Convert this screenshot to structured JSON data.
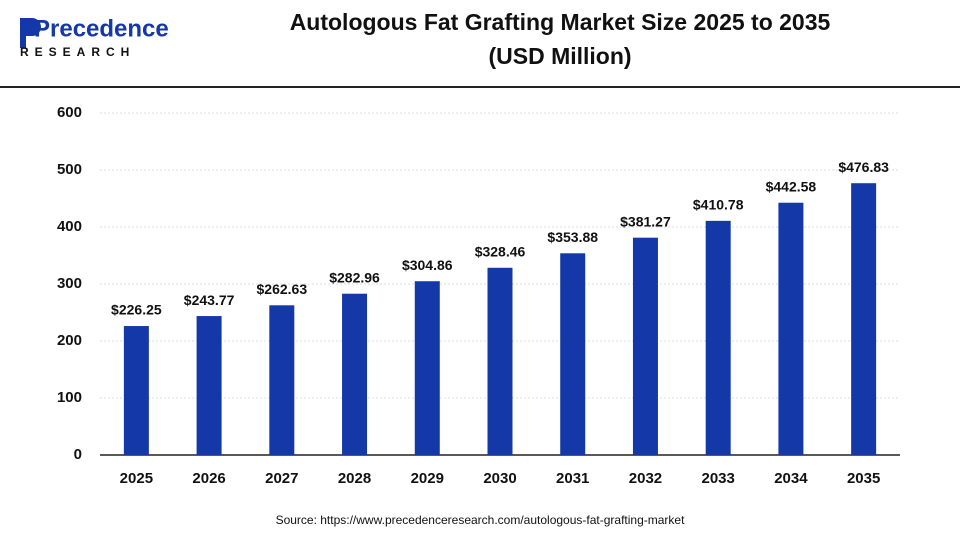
{
  "header": {
    "logo": "Precedence",
    "logo_sub": "RESEARCH"
  },
  "chart_data": {
    "type": "bar",
    "title": "Autologous Fat Grafting Market Size 2025 to 2035",
    "subtitle": "(USD Million)",
    "categories": [
      "2025",
      "2026",
      "2027",
      "2028",
      "2029",
      "2030",
      "2031",
      "2032",
      "2033",
      "2034",
      "2035"
    ],
    "values": [
      226.25,
      243.77,
      262.63,
      282.96,
      304.86,
      328.46,
      353.88,
      381.27,
      410.78,
      442.58,
      476.83
    ],
    "value_labels": [
      "$226.25",
      "$243.77",
      "$262.63",
      "$282.96",
      "$304.86",
      "$328.46",
      "$353.88",
      "$381.27",
      "$410.78",
      "$442.58",
      "$476.83"
    ],
    "color": "#1438a8",
    "ylim": [
      0,
      600
    ],
    "yticks": [
      0,
      100,
      200,
      300,
      400,
      500,
      600
    ],
    "grid": true,
    "source": "Source: https://www.precedenceresearch.com/autologous-fat-grafting-market"
  }
}
